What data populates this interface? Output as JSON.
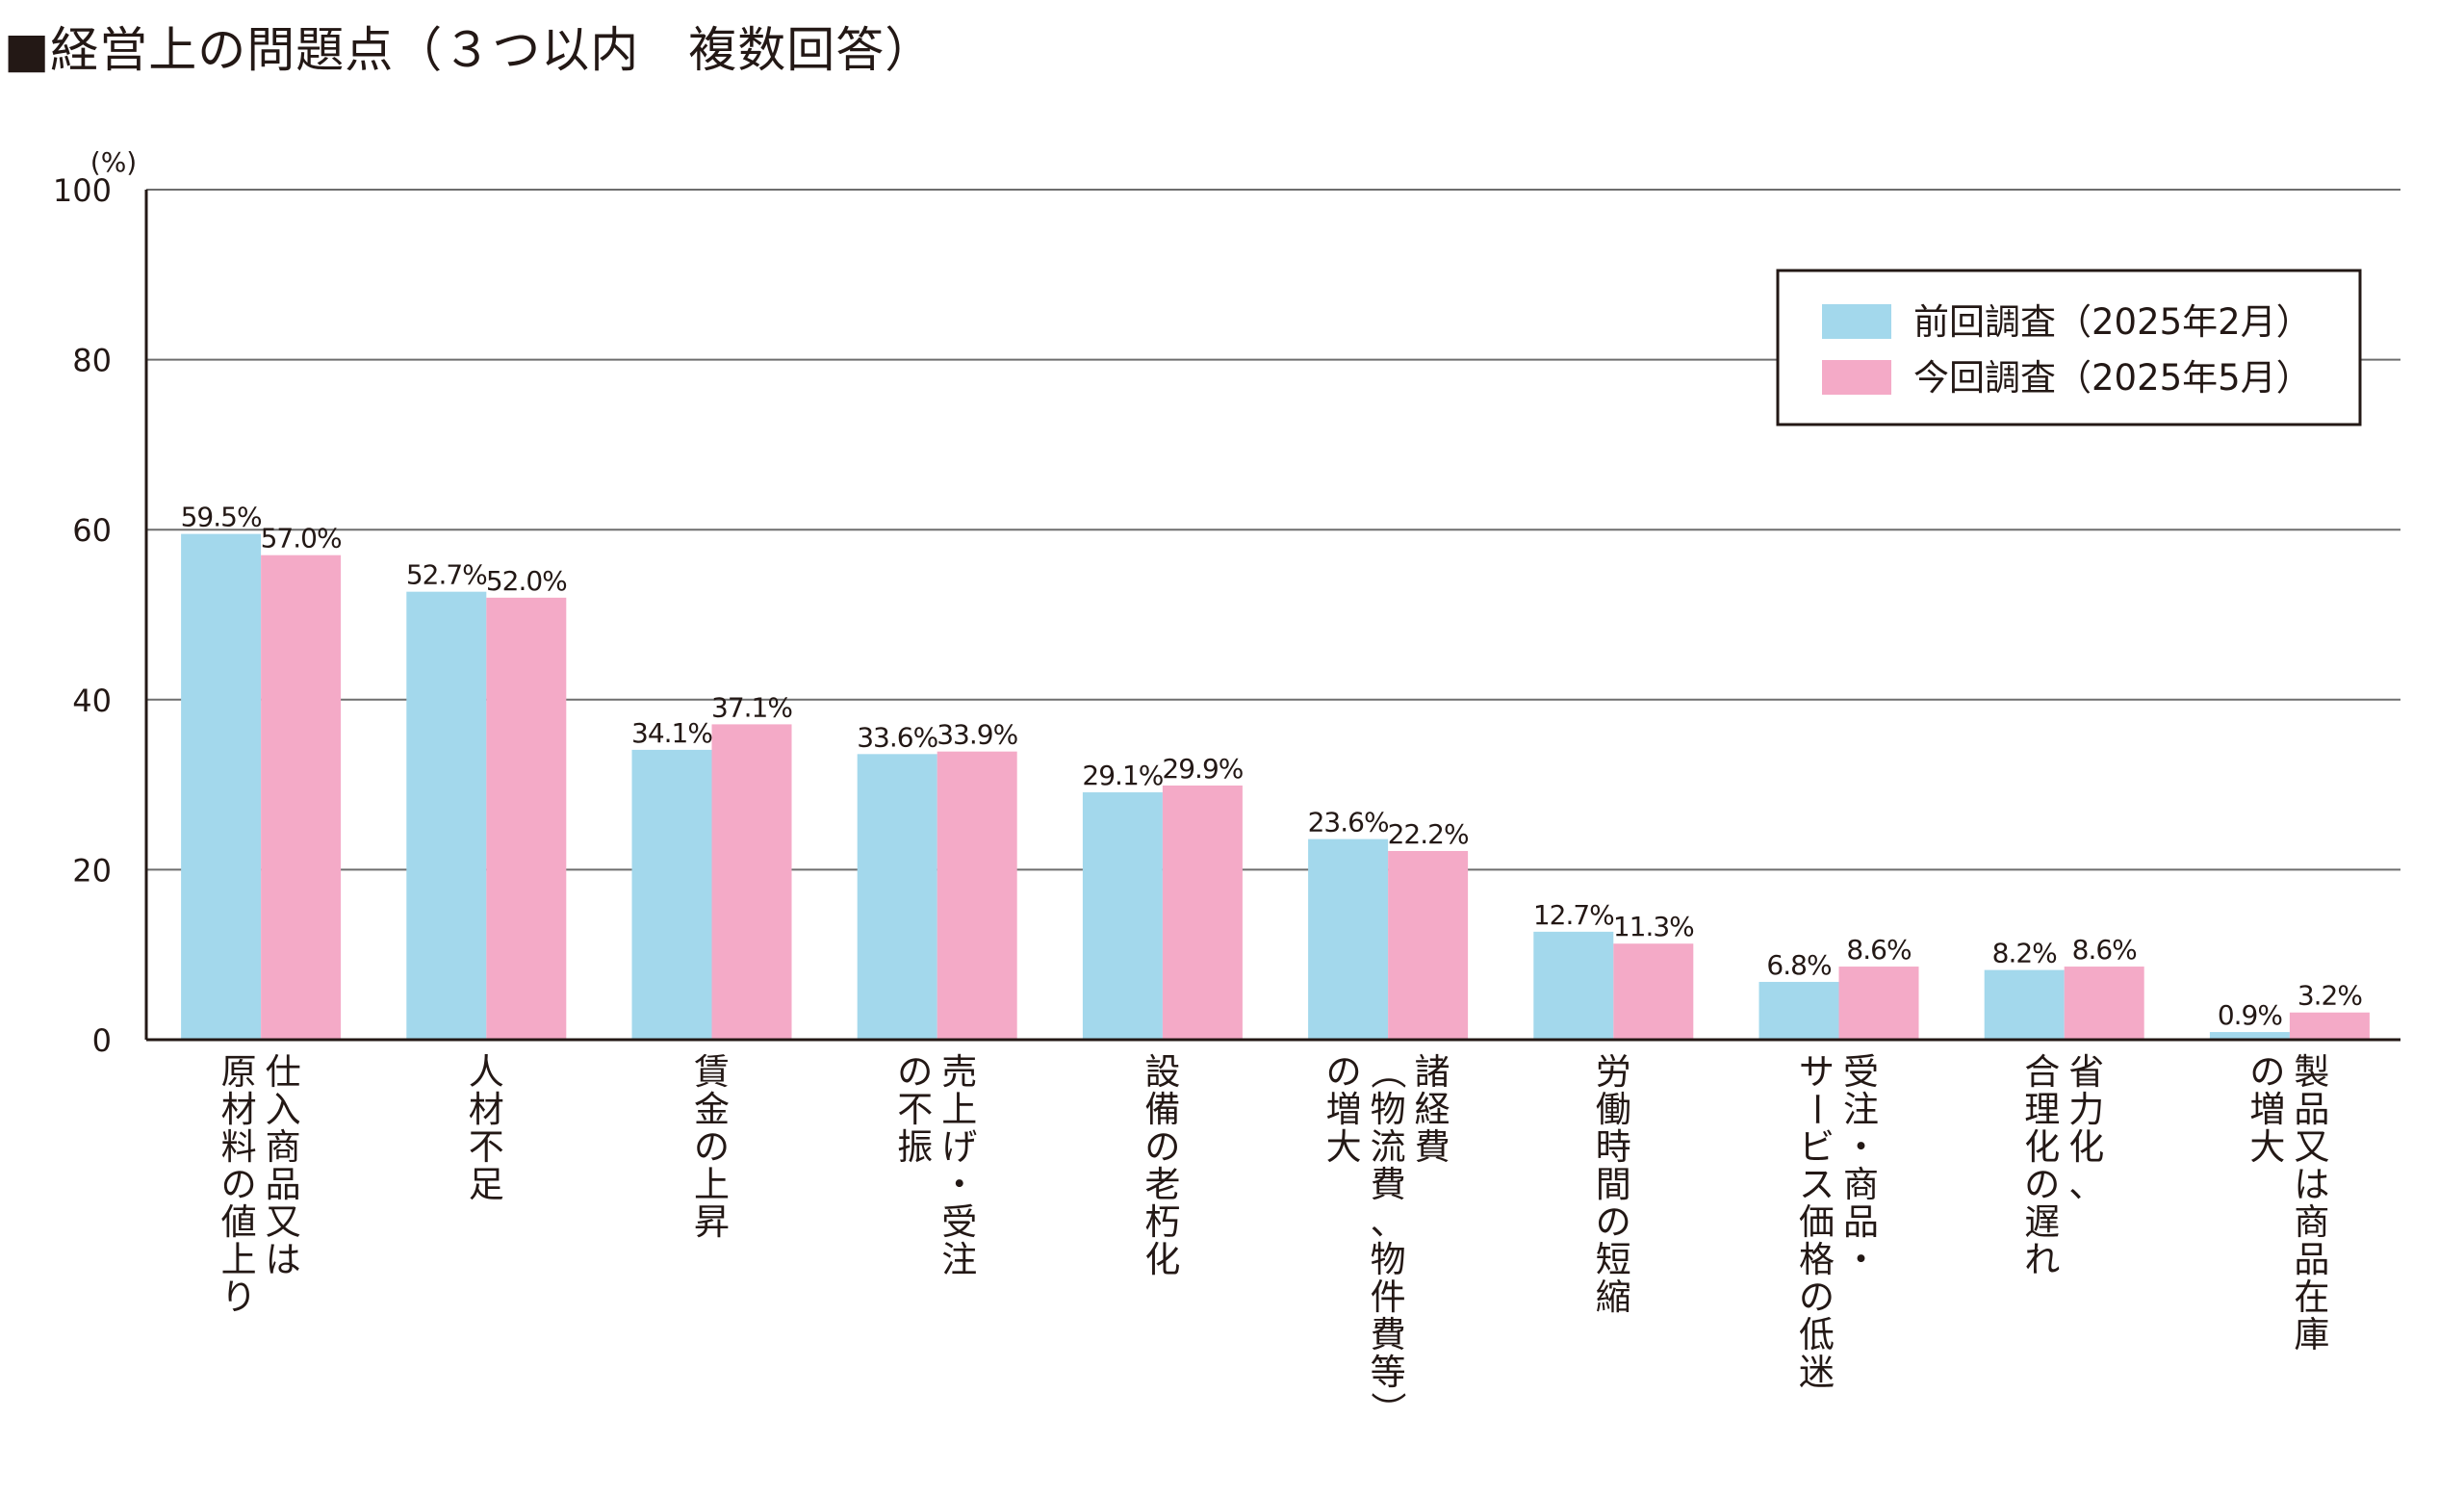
{
  "title": "■経営上の問題点（３つ以内　複数回答）",
  "colors": {
    "previous": "#a3d8ec",
    "current": "#f4aac7",
    "grid": "#6e6e6e",
    "axis": "#231815",
    "text": "#231815"
  },
  "chart_data": {
    "type": "bar",
    "title": "■経営上の問題点（３つ以内　複数回答）",
    "ylabel": "(%)",
    "xlabel": "",
    "ylim": [
      0,
      100
    ],
    "yticks": [
      "0",
      "20",
      "40",
      "60",
      "80",
      "100"
    ],
    "grid": true,
    "legend_position": "top-right",
    "categories": [
      [
        "仕入商品又は",
        "原材料の値上り"
      ],
      [
        "人材不足"
      ],
      [
        "賃金の上昇"
      ],
      [
        "売上げ・受注",
        "の不振"
      ],
      [
        "設備の老朽化"
      ],
      [
        "諸経費",
        "（物流費、物件費等）",
        "の増大"
      ],
      [
        "労働時間の短縮"
      ],
      [
        "受注・商品・",
        "サービス価格の低迷"
      ],
      [
        "省力化、",
        "合理化の遅れ"
      ],
      [
        "製品又は商品在庫",
        "の増大"
      ]
    ],
    "series": [
      {
        "name": "前回調査（2025年2月）",
        "values": [
          59.5,
          52.7,
          34.1,
          33.6,
          29.1,
          23.6,
          12.7,
          6.8,
          8.2,
          0.9
        ],
        "labels": [
          "59.5%",
          "52.7%",
          "34.1%",
          "33.6%",
          "29.1%",
          "23.6%",
          "12.7%",
          "6.8%",
          "8.2%",
          "0.9%"
        ]
      },
      {
        "name": "今回調査（2025年5月）",
        "values": [
          57.0,
          52.0,
          37.1,
          33.9,
          29.9,
          22.2,
          11.3,
          8.6,
          8.6,
          3.2
        ],
        "labels": [
          "57.0%",
          "52.0%",
          "37.1%",
          "33.9%",
          "29.9%",
          "22.2%",
          "11.3%",
          "8.6%",
          "8.6%",
          "3.2%"
        ]
      }
    ]
  }
}
